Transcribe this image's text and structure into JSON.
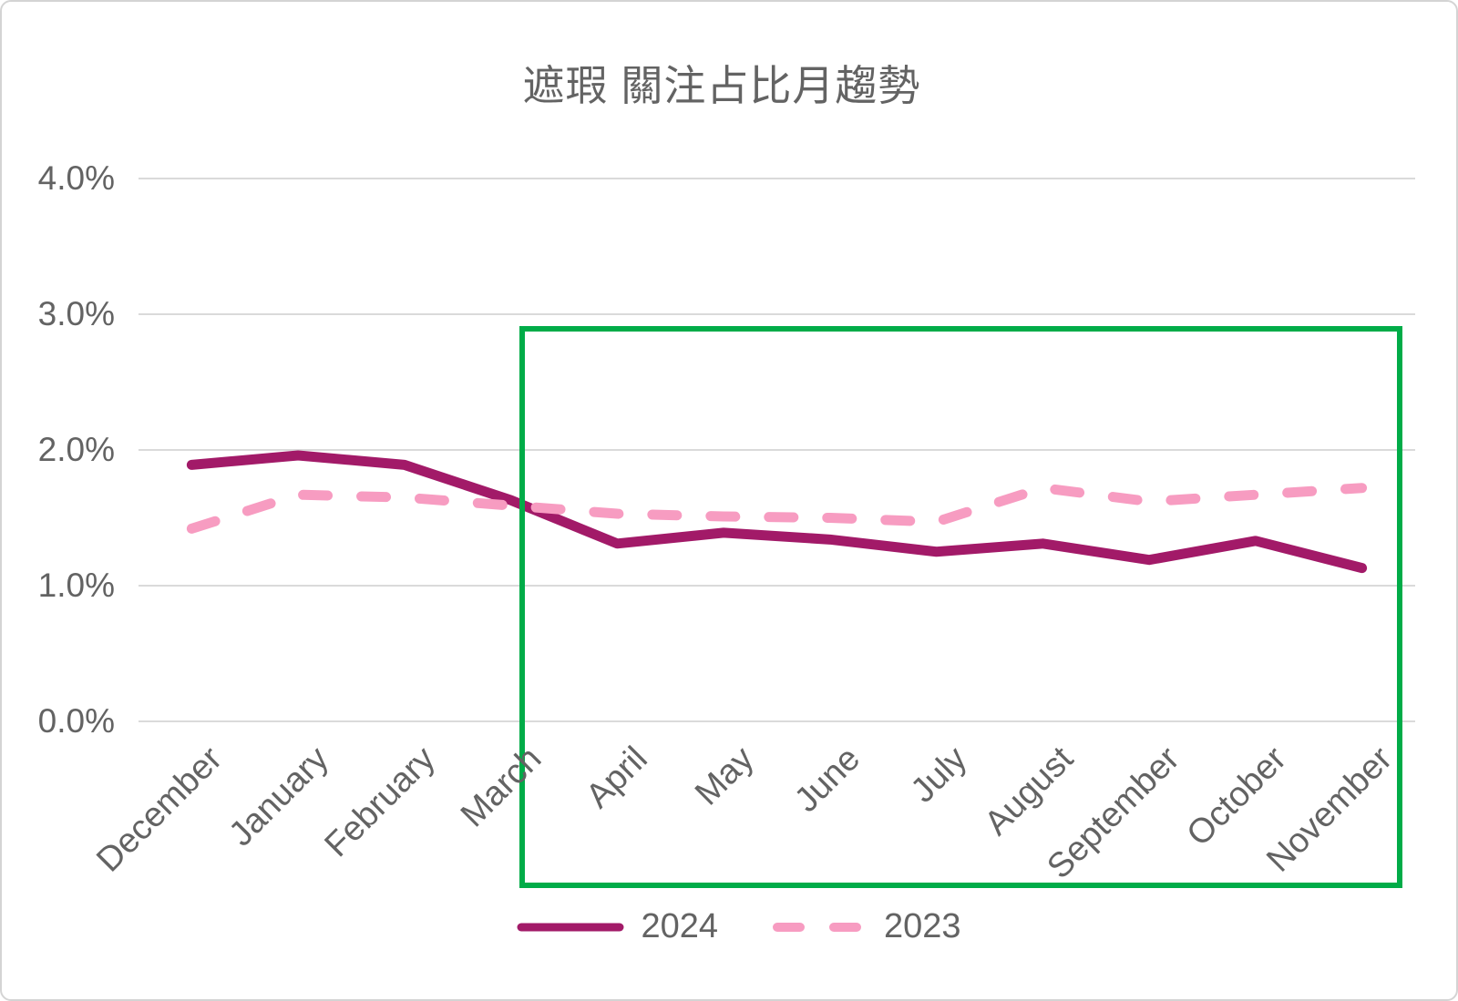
{
  "chart_data": {
    "type": "line",
    "title": "遮瑕 關注占比月趨勢",
    "categories": [
      "December",
      "January",
      "February",
      "March",
      "April",
      "May",
      "June",
      "July",
      "August",
      "September",
      "October",
      "November"
    ],
    "series": [
      {
        "name": "2024",
        "line_style": "solid",
        "color": "#A21A68",
        "values": [
          1.89,
          1.96,
          1.89,
          1.63,
          1.31,
          1.39,
          1.34,
          1.25,
          1.31,
          1.19,
          1.33,
          1.13
        ]
      },
      {
        "name": "2023",
        "line_style": "dashed",
        "color": "#F79CC1",
        "values": [
          1.42,
          1.67,
          1.65,
          1.59,
          1.53,
          1.51,
          1.5,
          1.47,
          1.72,
          1.62,
          1.67,
          1.72
        ]
      }
    ],
    "y_ticks": [
      "0.0%",
      "1.0%",
      "2.0%",
      "3.0%",
      "4.0%"
    ],
    "ylim": [
      0,
      4
    ],
    "unit": "%",
    "grid": true,
    "legend_position": "bottom",
    "annotations": [
      {
        "type": "rectangle",
        "color": "#00AC48",
        "covers_categories_start": "April",
        "covers_categories_end": "November",
        "y_top_value": 2.89,
        "note": "green highlight box over April to November"
      }
    ]
  },
  "colors": {
    "gridline": "#DADADA",
    "axis_text": "#636363",
    "title_text": "#636363",
    "page_border": "#D4D4D4",
    "series_2024": "#A21A68",
    "series_2023": "#F79CC1",
    "highlight_box": "#00AC48"
  }
}
